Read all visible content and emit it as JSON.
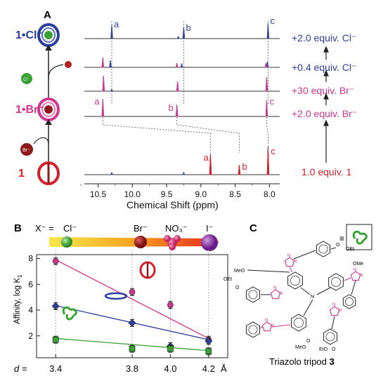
{
  "colors": {
    "blue": "#2b3f9e",
    "magenta": "#d0358f",
    "red": "#d3202a",
    "green": "#3aa135",
    "black": "#222222",
    "gray": "#888888"
  },
  "panelA": {
    "label": "A",
    "species_top": "1•Cl⁻",
    "species_mid": "1•Br⁻",
    "species_bot": "1",
    "ion_cl": "Cl⁻",
    "ion_br": "Br⁻",
    "peak_labels": [
      "a",
      "b",
      "c"
    ],
    "traces": [
      {
        "label": "+2.0 equiv. Cl⁻",
        "color": "blue"
      },
      {
        "label": "+0.4 equiv. Cl⁻",
        "color": "blue"
      },
      {
        "label": "+30 equiv. Br⁻",
        "color": "magenta"
      },
      {
        "label": "+2.0 equiv. Br⁻",
        "color": "magenta"
      },
      {
        "label": "1.0 equiv. 1",
        "color": "red"
      }
    ],
    "xaxis": {
      "label": "Chemical Shift (ppm)",
      "ticks": [
        "10.5",
        "10.0",
        "9.5",
        "9.0",
        "8.5",
        "8.0"
      ],
      "range": [
        10.7,
        7.85
      ]
    }
  },
  "panelB": {
    "label": "B",
    "anion_prefix": "X⁻ = ",
    "anions": [
      "Cl⁻",
      "Br⁻",
      "NO₃⁻",
      "I⁻"
    ],
    "ylabel": "Affinity, log K",
    "ylabel_sub": "1",
    "d_prefix": "d =",
    "d_unit": "Å",
    "chart_data": {
      "type": "scatter",
      "x": [
        3.4,
        3.8,
        4.0,
        4.2
      ],
      "xticks": [
        "3.4",
        "3.8",
        "4.0",
        "4.2"
      ],
      "yticks": [
        "2",
        "4",
        "6",
        "8"
      ],
      "ylim": [
        0.3,
        8.3
      ],
      "series": [
        {
          "values": [
            7.8,
            5.4,
            4.4,
            1.7
          ],
          "fit": [
            7.9,
            1.8
          ],
          "color": "magenta"
        },
        {
          "values": [
            4.3,
            3.0,
            1.2,
            1.6
          ],
          "fit": [
            4.35,
            1.7
          ],
          "color": "blue"
        },
        {
          "values": [
            1.7,
            1.0,
            1.0,
            0.8
          ],
          "fit": [
            1.8,
            0.85
          ],
          "color": "green"
        }
      ]
    }
  },
  "panelC": {
    "label": "C",
    "caption_text": "Triazolo tripod ",
    "caption_num": "3",
    "equiv_sign": "≡",
    "atoms": {
      "meo": "MeO",
      "ome": "OMe",
      "oet": "OEt",
      "eto": "EtO",
      "o": "O",
      "n": "N"
    }
  }
}
